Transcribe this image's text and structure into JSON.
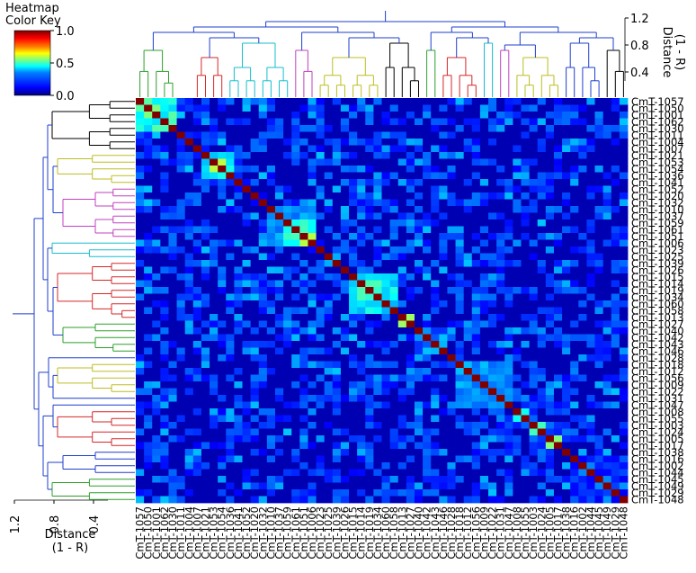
{
  "chart_data": {
    "type": "heatmap",
    "title": "",
    "colorkey": {
      "title_lines": [
        "Heatmap",
        "Color Key"
      ],
      "ticks": [
        "1.0",
        "0.5",
        "0.0"
      ],
      "range": [
        0.0,
        1.0
      ],
      "colormap": [
        "#00007f",
        "#0000ff",
        "#007fff",
        "#00ffff",
        "#7fff7f",
        "#ffff00",
        "#ff7f00",
        "#ff0000",
        "#7f0000"
      ]
    },
    "top_axis": {
      "label_lines": [
        "Distance",
        "(1 - R)"
      ],
      "ticks": [
        "1.2",
        "0.8",
        "0.4"
      ]
    },
    "left_axis": {
      "label_lines": [
        "Distance",
        "(1 - R)"
      ],
      "ticks": [
        "1.2",
        "0.8",
        "0.4"
      ]
    },
    "row_labels": [
      "CmT-1057",
      "CmT-1050",
      "CmT-1001",
      "CmT-1062",
      "CmT-1030",
      "CmT-1011",
      "CmT-1004",
      "CmT-1007",
      "CmT-1021",
      "CmT-1053",
      "CmT-1054",
      "CmT-1036",
      "CmT-1041",
      "CmT-1052",
      "CmT-1020",
      "CmT-1032",
      "CmT-1010",
      "CmT-1037",
      "CmT-1059",
      "CmT-1061",
      "CmT-1051",
      "CmT-1006",
      "CmT-1023",
      "CmT-1025",
      "CmT-1039",
      "CmT-1026",
      "CmT-1015",
      "CmT-1014",
      "CmT-1019",
      "CmT-1034",
      "CmT-1060",
      "CmT-1058",
      "CmT-1013",
      "CmT-1027",
      "CmT-1040",
      "CmT-1042",
      "CmT-1043",
      "CmT-1046",
      "CmT-1028",
      "CmT-1018",
      "CmT-1012",
      "CmT-1056",
      "CmT-1009",
      "CmT-1022",
      "CmT-1031",
      "CmT-1047",
      "CmT-1008",
      "CmT-1055",
      "CmT-1003",
      "CmT-1024",
      "CmT-1005",
      "CmT-1017",
      "CmT-1038",
      "CmT-1016",
      "CmT-1002",
      "CmT-1044",
      "CmT-1045",
      "CmT-1049",
      "CmT-1029",
      "CmT-1048"
    ],
    "col_labels": [
      "CmT-1057",
      "CmT-1050",
      "CmT-1001",
      "CmT-1062",
      "CmT-1030",
      "CmT-1011",
      "CmT-1004",
      "CmT-1007",
      "CmT-1021",
      "CmT-1053",
      "CmT-1054",
      "CmT-1036",
      "CmT-1041",
      "CmT-1052",
      "CmT-1020",
      "CmT-1032",
      "CmT-1010",
      "CmT-1037",
      "CmT-1059",
      "CmT-1061",
      "CmT-1051",
      "CmT-1006",
      "CmT-1023",
      "CmT-1025",
      "CmT-1039",
      "CmT-1026",
      "CmT-1015",
      "CmT-1014",
      "CmT-1019",
      "CmT-1034",
      "CmT-1060",
      "CmT-1058",
      "CmT-1013",
      "CmT-1027",
      "CmT-1040",
      "CmT-1042",
      "CmT-1043",
      "CmT-1046",
      "CmT-1028",
      "CmT-1018",
      "CmT-1012",
      "CmT-1056",
      "CmT-1009",
      "CmT-1022",
      "CmT-1031",
      "CmT-1047",
      "CmT-1008",
      "CmT-1055",
      "CmT-1003",
      "CmT-1024",
      "CmT-1005",
      "CmT-1017",
      "CmT-1038",
      "CmT-1016",
      "CmT-1002",
      "CmT-1044",
      "CmT-1045",
      "CmT-1049",
      "CmT-1029",
      "CmT-1048"
    ],
    "diagonal_value": 1.0,
    "background_value": 0.05,
    "blocks": [
      {
        "r0": 0,
        "r1": 4,
        "c0": 0,
        "c1": 4,
        "value": 0.45
      },
      {
        "r0": 1,
        "r1": 2,
        "c0": 1,
        "c1": 2,
        "value": 0.6
      },
      {
        "r0": 8,
        "r1": 11,
        "c0": 8,
        "c1": 11,
        "value": 0.4
      },
      {
        "r0": 9,
        "r1": 10,
        "c0": 9,
        "c1": 10,
        "value": 0.55
      },
      {
        "r0": 16,
        "r1": 21,
        "c0": 16,
        "c1": 21,
        "value": 0.3
      },
      {
        "r0": 18,
        "r1": 21,
        "c0": 18,
        "c1": 21,
        "value": 0.45
      },
      {
        "r0": 20,
        "r1": 21,
        "c0": 20,
        "c1": 21,
        "value": 0.6
      },
      {
        "r0": 26,
        "r1": 31,
        "c0": 26,
        "c1": 31,
        "value": 0.4
      },
      {
        "r0": 27,
        "r1": 29,
        "c0": 27,
        "c1": 29,
        "value": 0.5
      },
      {
        "r0": 32,
        "r1": 33,
        "c0": 32,
        "c1": 33,
        "value": 0.55
      },
      {
        "r0": 39,
        "r1": 45,
        "c0": 39,
        "c1": 45,
        "value": 0.3
      },
      {
        "r0": 46,
        "r1": 47,
        "c0": 46,
        "c1": 47,
        "value": 0.5
      },
      {
        "r0": 48,
        "r1": 49,
        "c0": 48,
        "c1": 49,
        "value": 0.5
      },
      {
        "r0": 50,
        "r1": 51,
        "c0": 50,
        "c1": 51,
        "value": 0.55
      },
      {
        "r0": 53,
        "r1": 59,
        "c0": 53,
        "c1": 59,
        "value": 0.15
      }
    ],
    "top_dendrogram_groups": [
      {
        "color": "#1f3fcf",
        "start": 0,
        "end": 7
      },
      {
        "color": "#2ca02c",
        "start": 0,
        "end": 5
      },
      {
        "color": "#d62728",
        "start": 7,
        "end": 11
      },
      {
        "color": "#17becf",
        "start": 11,
        "end": 19
      },
      {
        "color": "#c040c0",
        "start": 19,
        "end": 22
      },
      {
        "color": "#bcbd22",
        "start": 22,
        "end": 30
      },
      {
        "color": "#000000",
        "start": 30,
        "end": 35
      },
      {
        "color": "#2ca02c",
        "start": 35,
        "end": 37
      },
      {
        "color": "#d62728",
        "start": 37,
        "end": 42
      },
      {
        "color": "#17becf",
        "start": 42,
        "end": 44
      },
      {
        "color": "#c040c0",
        "start": 44,
        "end": 46
      },
      {
        "color": "#bcbd22",
        "start": 46,
        "end": 52
      },
      {
        "color": "#1f3fcf",
        "start": 52,
        "end": 57
      },
      {
        "color": "#000000",
        "start": 57,
        "end": 60
      }
    ],
    "left_dendrogram_groups": [
      {
        "color": "#000000",
        "start": 0,
        "end": 8
      },
      {
        "color": "#bcbd22",
        "start": 8,
        "end": 13
      },
      {
        "color": "#c040c0",
        "start": 13,
        "end": 21
      },
      {
        "color": "#17becf",
        "start": 21,
        "end": 24
      },
      {
        "color": "#d62728",
        "start": 24,
        "end": 33
      },
      {
        "color": "#2ca02c",
        "start": 33,
        "end": 38
      },
      {
        "color": "#000000",
        "start": 38,
        "end": 39
      },
      {
        "color": "#bcbd22",
        "start": 39,
        "end": 44
      },
      {
        "color": "#c040c0",
        "start": 44,
        "end": 45
      },
      {
        "color": "#17becf",
        "start": 45,
        "end": 46
      },
      {
        "color": "#d62728",
        "start": 46,
        "end": 52
      },
      {
        "color": "#1f3fcf",
        "start": 52,
        "end": 56
      },
      {
        "color": "#2ca02c",
        "start": 56,
        "end": 60
      }
    ]
  }
}
